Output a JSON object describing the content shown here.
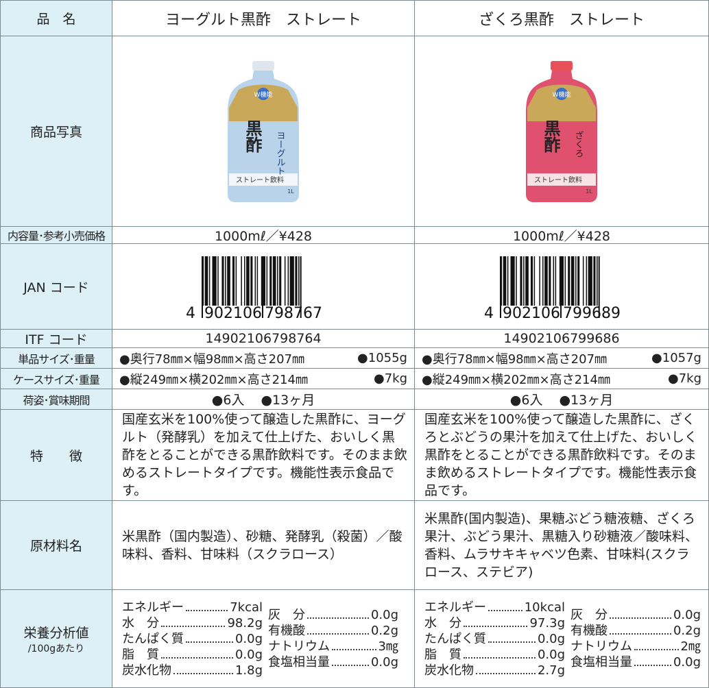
{
  "header": {
    "label": "品　名",
    "products": [
      "ヨーグルト黒酢　ストレート",
      "ざくろ黒酢　ストレート"
    ]
  },
  "photo": {
    "label": "商品写真",
    "products": [
      {
        "kind": "ヨーグルト",
        "name": "黒酢",
        "drink": "ストレート飲料",
        "size": "1L",
        "badge": "W機能"
      },
      {
        "kind": "ざくろ",
        "name": "黒酢",
        "drink": "ストレート飲料",
        "size": "1L",
        "badge": "W機能"
      }
    ]
  },
  "price": {
    "label": "内容量･参考小売価格",
    "values": [
      "1000mℓ／¥428",
      "1000mℓ／¥428"
    ]
  },
  "jan": {
    "label": "JAN コード",
    "codes": [
      [
        "4",
        "902106",
        "798767"
      ],
      [
        "4",
        "902106",
        "799689"
      ]
    ]
  },
  "itf": {
    "label": "ITF コード",
    "values": [
      "14902106798764",
      "14902106799686"
    ]
  },
  "unit_size": {
    "label": "単品サイズ･重量",
    "values": [
      [
        "●奥行78㎜×幅98㎜×高さ207㎜",
        "●1055g"
      ],
      [
        "●奥行78㎜×幅98㎜×高さ207㎜",
        "●1057g"
      ]
    ]
  },
  "case_size": {
    "label": "ケースサイズ･重量",
    "values": [
      [
        "●縦249㎜×横202㎜×高さ214㎜",
        "●7kg"
      ],
      [
        "●縦249㎜×横202㎜×高さ214㎜",
        "●7kg"
      ]
    ]
  },
  "packing": {
    "label": "荷姿･賞味期間",
    "values": [
      [
        "●6入",
        "●13ヶ月"
      ],
      [
        "●6入",
        "●13ヶ月"
      ]
    ]
  },
  "features": {
    "label": "特　　徴",
    "values": [
      "国産玄米を100%使って醸造した黒酢に、ヨーグルト（発酵乳）を加えて仕上げた、おいしく黒酢をとることができる黒酢飲料です。そのまま飲めるストレートタイプです。機能性表示食品です。",
      "国産玄米を100%使って醸造した黒酢に、ざくろとぶどうの果汁を加えて仕上げた、おいしく黒酢をとることができる黒酢飲料です。そのまま飲めるストレートタイプです。機能性表示食品です。"
    ]
  },
  "ingredients": {
    "label": "原材料名",
    "values": [
      "米黒酢（国内製造）、砂糖、発酵乳（殺菌）／酸味料、香料、甘味料（スクラロース）",
      "米黒酢(国内製造)、果糖ぶどう糖液糖、ざくろ果汁、ぶどう果汁、黒糖入り砂糖液／酸味料、香料、ムラサキキャベツ色素、甘味料(スクラロース、ステビア)"
    ]
  },
  "nutrition": {
    "label": "栄養分析値",
    "sublabel": "/100gあたり",
    "products": [
      {
        "left": [
          [
            "エネルギー",
            "7kcal"
          ],
          [
            "水　分",
            "98.2g"
          ],
          [
            "たんぱく質",
            "0.0g"
          ],
          [
            "脂　質",
            "0.0g"
          ],
          [
            "炭水化物",
            "1.8g"
          ]
        ],
        "right": [
          [
            "灰　分",
            "0.0g"
          ],
          [
            "有機酸",
            "0.2g"
          ],
          [
            "ナトリウム",
            "3㎎"
          ],
          [
            "食塩相当量",
            "0.0g"
          ]
        ]
      },
      {
        "left": [
          [
            "エネルギー",
            "10kcal"
          ],
          [
            "水　分",
            "97.3g"
          ],
          [
            "たんぱく質",
            "0.0g"
          ],
          [
            "脂　質",
            "0.0g"
          ],
          [
            "炭水化物",
            "2.7g"
          ]
        ],
        "right": [
          [
            "灰　分",
            "0.0g"
          ],
          [
            "有機酸",
            "0.2g"
          ],
          [
            "ナトリウム",
            "2㎎"
          ],
          [
            "食塩相当量",
            "0.0g"
          ]
        ]
      }
    ]
  }
}
